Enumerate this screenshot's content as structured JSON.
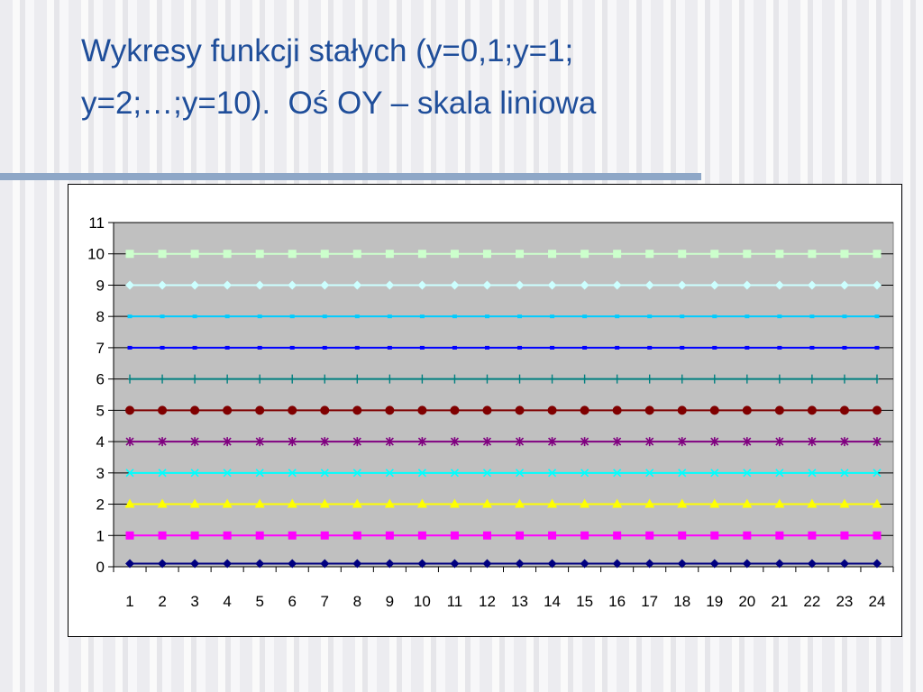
{
  "slide": {
    "title_line1": "Wykresy funkcji stałych (y=0,1;y=1;",
    "title_line2": "y=2;…;y=10).  Oś OY – skala liniowa"
  },
  "colors": {
    "title": "#1f4e9a",
    "plot_area": "#c0c0c0",
    "rule": "#8ea7c7"
  },
  "chart_data": {
    "type": "line",
    "title": "",
    "xlabel": "",
    "ylabel": "",
    "x": [
      1,
      2,
      3,
      4,
      5,
      6,
      7,
      8,
      9,
      10,
      11,
      12,
      13,
      14,
      15,
      16,
      17,
      18,
      19,
      20,
      21,
      22,
      23,
      24
    ],
    "xlim": [
      1,
      24
    ],
    "ylim": [
      0,
      11
    ],
    "yticks": [
      0,
      1,
      2,
      3,
      4,
      5,
      6,
      7,
      8,
      9,
      10,
      11
    ],
    "grid": "horizontal major at each series level",
    "legend": "none",
    "series": [
      {
        "y": 0.1,
        "color": "#000080",
        "marker": "diamond"
      },
      {
        "y": 1,
        "color": "#ff00ff",
        "marker": "square"
      },
      {
        "y": 2,
        "color": "#ffff00",
        "marker": "triangle"
      },
      {
        "y": 3,
        "color": "#00ffff",
        "marker": "x"
      },
      {
        "y": 4,
        "color": "#800080",
        "marker": "star"
      },
      {
        "y": 5,
        "color": "#800000",
        "marker": "circle"
      },
      {
        "y": 6,
        "color": "#008080",
        "marker": "plus"
      },
      {
        "y": 7,
        "color": "#0000ff",
        "marker": "dash"
      },
      {
        "y": 8,
        "color": "#00ccff",
        "marker": "dash"
      },
      {
        "y": 9,
        "color": "#ccffff",
        "marker": "diamond"
      },
      {
        "y": 10,
        "color": "#ccffcc",
        "marker": "square"
      }
    ]
  }
}
